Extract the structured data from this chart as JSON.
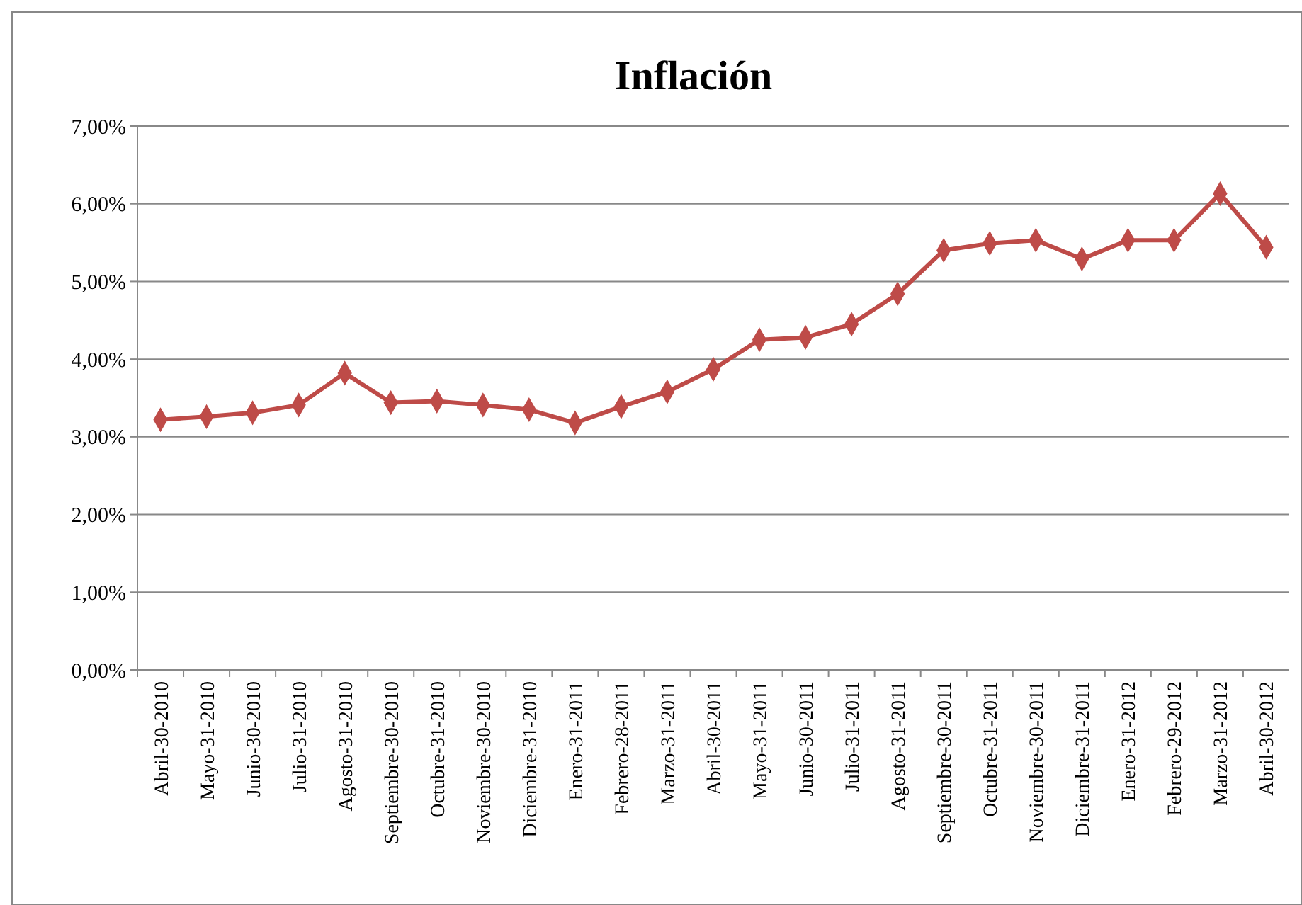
{
  "chart_data": {
    "type": "line",
    "title": "Inflación",
    "categories": [
      "Abril-30-2010",
      "Mayo-31-2010",
      "Junio-30-2010",
      "Julio-31-2010",
      "Agosto-31-2010",
      "Septiembre-30-2010",
      "Octubre-31-2010",
      "Noviembre-30-2010",
      "Diciembre-31-2010",
      "Enero-31-2011",
      "Febrero-28-2011",
      "Marzo-31-2011",
      "Abril-30-2011",
      "Mayo-31-2011",
      "Junio-30-2011",
      "Julio-31-2011",
      "Agosto-31-2011",
      "Septiembre-30-2011",
      "Octubre-31-2011",
      "Noviembre-30-2011",
      "Diciembre-31-2011",
      "Enero-31-2012",
      "Febrero-29-2012",
      "Marzo-31-2012",
      "Abril-30-2012"
    ],
    "series": [
      {
        "color": "#be4b48",
        "values": [
          3.22,
          3.26,
          3.31,
          3.41,
          3.82,
          3.44,
          3.46,
          3.41,
          3.35,
          3.18,
          3.39,
          3.58,
          3.87,
          4.25,
          4.28,
          4.45,
          4.84,
          5.4,
          5.49,
          5.53,
          5.29,
          5.53,
          5.53,
          6.13,
          5.44
        ]
      }
    ],
    "ylim": [
      0,
      7
    ],
    "yticks": [
      {
        "value": 0,
        "label": "0,00%"
      },
      {
        "value": 1,
        "label": "1,00%"
      },
      {
        "value": 2,
        "label": "2,00%"
      },
      {
        "value": 3,
        "label": "3,00%"
      },
      {
        "value": 4,
        "label": "4,00%"
      },
      {
        "value": 5,
        "label": "5,00%"
      },
      {
        "value": 6,
        "label": "6,00%"
      },
      {
        "value": 7,
        "label": "7,00%"
      }
    ],
    "grid": "y",
    "marker": "diamond",
    "line_style": "solid"
  }
}
